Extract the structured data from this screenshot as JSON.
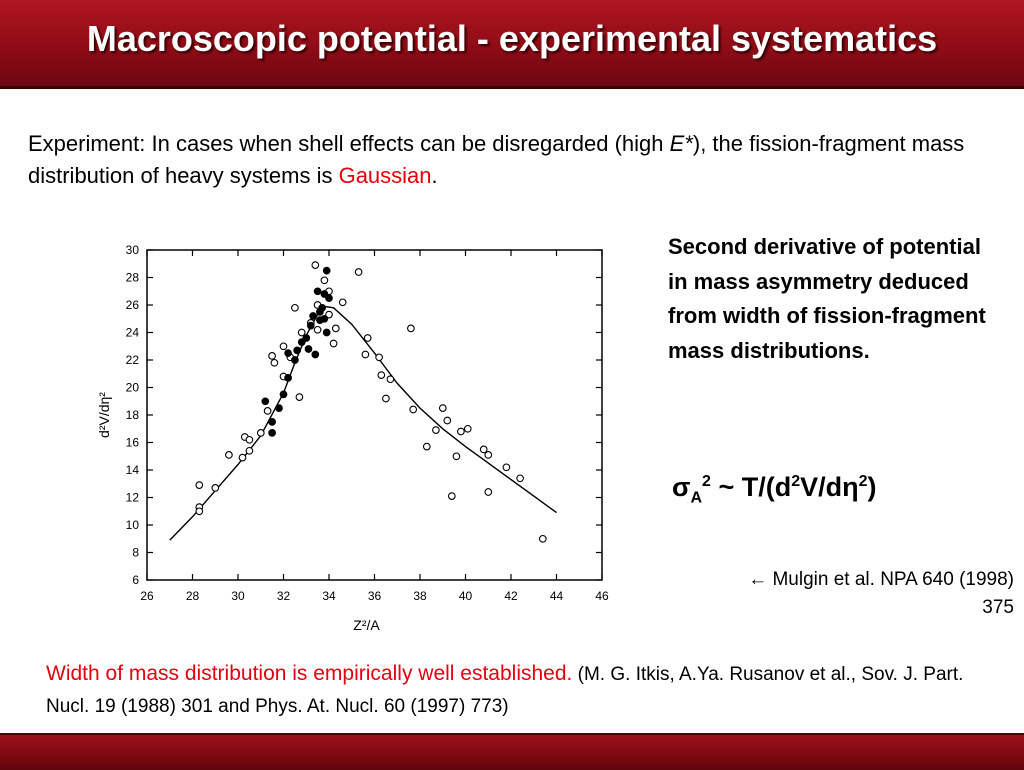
{
  "title": "Macroscopic potential - experimental systematics",
  "intro": {
    "p1": "Experiment: In cases when shell effects can be disregarded (high ",
    "estar": "E*",
    "p2": "), the fission-fragment mass distribution of heavy systems is ",
    "gaussian": "Gaussian",
    "p3": "."
  },
  "side_note": "Second derivative of potential in mass asymmetry deduced from width of fission-fragment mass distributions.",
  "formula": {
    "sigma": "σ",
    "sub": "A",
    "sup": "2",
    "rel": " ~  T/(d",
    "sup2": "2",
    "mid": "V/dη",
    "sup3": "2",
    "end": ")"
  },
  "citation": {
    "line1": "← Mulgin et al. NPA 640 (1998)",
    "line2": "375"
  },
  "bottom": {
    "highlight": "Width of mass distribution is empirically well established.",
    "ref": " (M. G. Itkis, A.Ya. Rusanov et al., Sov. J. Part. Nucl. 19 (1988) 301 and Phys. At. Nucl. 60 (1997) 773)"
  },
  "colors": {
    "header": "#9a0f19",
    "accent_red": "#e3000f"
  },
  "chart_data": {
    "type": "scatter",
    "title": "",
    "xlabel": "Z²/A",
    "ylabel": "d²V/dη²",
    "xlim": [
      26,
      46
    ],
    "ylim": [
      6,
      30
    ],
    "xticks": [
      26,
      28,
      30,
      32,
      34,
      36,
      38,
      40,
      42,
      44,
      46
    ],
    "yticks": [
      6,
      8,
      10,
      12,
      14,
      16,
      18,
      20,
      22,
      24,
      26,
      28,
      30
    ],
    "grid": false,
    "series": [
      {
        "marker": "open",
        "points": [
          [
            28.3,
            12.9
          ],
          [
            28.3,
            11.3
          ],
          [
            28.3,
            11.0
          ],
          [
            29.0,
            12.7
          ],
          [
            29.6,
            15.1
          ],
          [
            30.2,
            14.9
          ],
          [
            30.3,
            16.4
          ],
          [
            30.5,
            15.4
          ],
          [
            30.5,
            16.2
          ],
          [
            31.0,
            16.7
          ],
          [
            31.3,
            18.3
          ],
          [
            31.5,
            22.3
          ],
          [
            31.6,
            21.8
          ],
          [
            32.0,
            20.8
          ],
          [
            32.0,
            23.0
          ],
          [
            32.3,
            22.2
          ],
          [
            32.5,
            25.8
          ],
          [
            32.7,
            19.3
          ],
          [
            32.8,
            24.0
          ],
          [
            33.2,
            24.7
          ],
          [
            33.4,
            28.9
          ],
          [
            33.5,
            26.0
          ],
          [
            33.5,
            24.2
          ],
          [
            33.8,
            27.8
          ],
          [
            34.0,
            27.0
          ],
          [
            34.0,
            25.3
          ],
          [
            34.2,
            23.2
          ],
          [
            34.3,
            24.3
          ],
          [
            34.6,
            26.2
          ],
          [
            35.3,
            28.4
          ],
          [
            35.6,
            22.4
          ],
          [
            35.7,
            23.6
          ],
          [
            36.2,
            22.2
          ],
          [
            36.3,
            20.9
          ],
          [
            36.5,
            19.2
          ],
          [
            36.7,
            20.6
          ],
          [
            37.6,
            24.3
          ],
          [
            37.7,
            18.4
          ],
          [
            38.3,
            15.7
          ],
          [
            38.7,
            16.9
          ],
          [
            39.0,
            18.5
          ],
          [
            39.2,
            17.6
          ],
          [
            39.4,
            12.1
          ],
          [
            39.6,
            15.0
          ],
          [
            39.8,
            16.8
          ],
          [
            40.1,
            17.0
          ],
          [
            40.8,
            15.5
          ],
          [
            41.0,
            15.1
          ],
          [
            41.0,
            12.4
          ],
          [
            41.8,
            14.2
          ],
          [
            42.4,
            13.4
          ],
          [
            43.4,
            9.0
          ]
        ]
      },
      {
        "marker": "filled",
        "points": [
          [
            31.2,
            19.0
          ],
          [
            31.5,
            17.5
          ],
          [
            31.5,
            16.7
          ],
          [
            31.8,
            18.5
          ],
          [
            32.0,
            19.5
          ],
          [
            32.2,
            20.7
          ],
          [
            32.5,
            22.0
          ],
          [
            32.6,
            22.7
          ],
          [
            32.8,
            23.3
          ],
          [
            33.0,
            23.6
          ],
          [
            33.1,
            22.8
          ],
          [
            33.2,
            24.5
          ],
          [
            33.3,
            25.2
          ],
          [
            33.4,
            22.4
          ],
          [
            33.5,
            27.0
          ],
          [
            33.6,
            25.5
          ],
          [
            33.7,
            25.8
          ],
          [
            33.8,
            26.8
          ],
          [
            33.8,
            25.0
          ],
          [
            33.9,
            24.0
          ],
          [
            33.9,
            28.5
          ],
          [
            34.0,
            26.5
          ],
          [
            33.6,
            24.9
          ],
          [
            32.2,
            22.5
          ]
        ]
      }
    ],
    "fit_curve": {
      "x": [
        27.0,
        28.0,
        29.0,
        30.0,
        31.0,
        32.0,
        32.5,
        33.0,
        33.5,
        33.8,
        34.2,
        35.0,
        36.0,
        37.0,
        38.0,
        39.0,
        40.0,
        41.0,
        42.0,
        43.0,
        44.0
      ],
      "y": [
        8.9,
        10.6,
        12.5,
        14.4,
        16.5,
        19.6,
        21.8,
        23.8,
        25.3,
        25.9,
        25.8,
        24.6,
        22.5,
        20.3,
        18.5,
        17.0,
        15.7,
        14.5,
        13.3,
        12.1,
        10.9
      ]
    }
  }
}
